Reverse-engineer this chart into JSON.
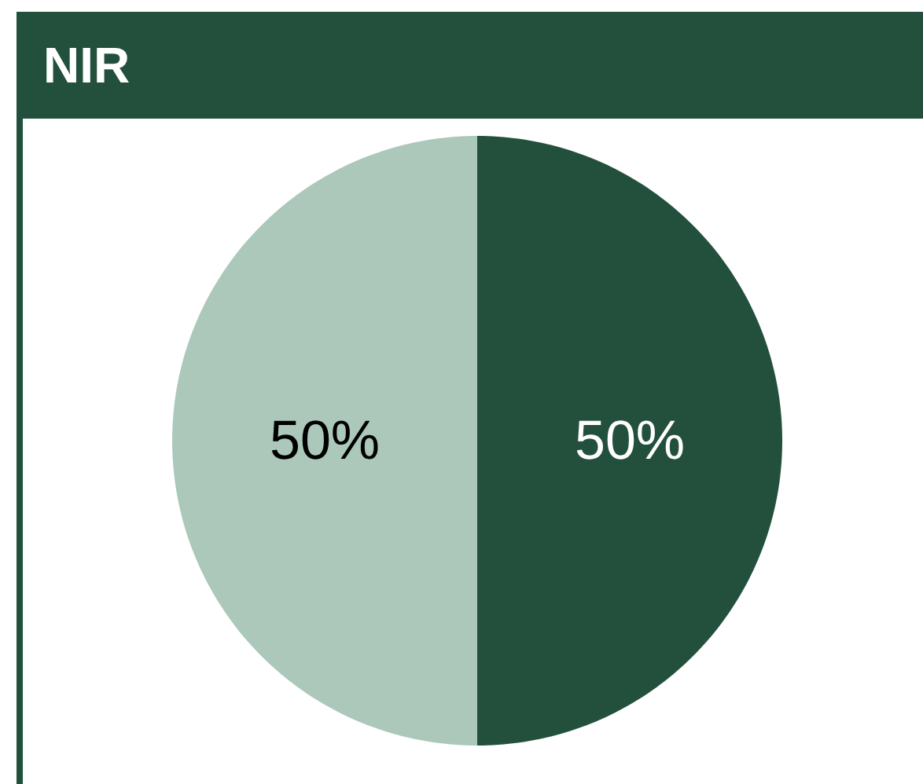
{
  "chart_data": {
    "type": "pie",
    "title": "NIR",
    "categories": [
      null,
      null
    ],
    "values": [
      50,
      50
    ],
    "colors": [
      "#23503d",
      "#abc8ba"
    ],
    "value_labels": [
      "50%",
      "50%"
    ]
  }
}
